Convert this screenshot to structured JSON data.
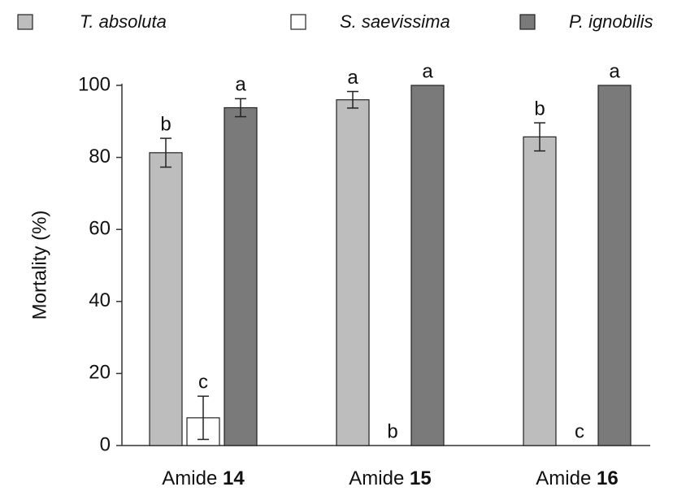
{
  "chart_data": {
    "type": "bar",
    "y_label": "Mortality (%)",
    "categories": [
      "Amide 14",
      "Amide 15",
      "Amide 16"
    ],
    "series": [
      {
        "name": "T. absoluta",
        "color": "#bdbdbd",
        "values": [
          81.3,
          96,
          85.7
        ],
        "errors": [
          4,
          2.3,
          3.9
        ],
        "labels": [
          "b",
          "a",
          "b"
        ]
      },
      {
        "name": "S. saevissima",
        "color": "#ffffff",
        "values": [
          7.7,
          0,
          0
        ],
        "errors": [
          6,
          0,
          0
        ],
        "labels": [
          "c",
          "b",
          "c"
        ]
      },
      {
        "name": "P. ignobilis",
        "color": "#7a7a7a",
        "values": [
          93.8,
          100,
          100
        ],
        "errors": [
          2.5,
          null,
          null
        ],
        "labels": [
          "a",
          "a",
          "a"
        ]
      }
    ],
    "ylim": [
      0,
      100
    ],
    "yticks": [
      0,
      20,
      40,
      60,
      80,
      100
    ]
  }
}
